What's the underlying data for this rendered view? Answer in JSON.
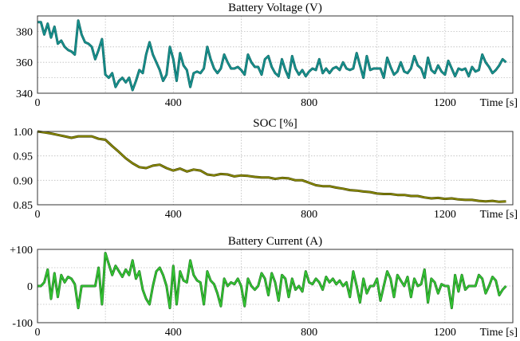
{
  "chart_data": [
    {
      "type": "line",
      "title": "Battery Voltage (V)",
      "xlabel": "Time [s]",
      "xlim": [
        0,
        1400
      ],
      "xticks": [
        0,
        400,
        800,
        1200
      ],
      "ylim": [
        340,
        390
      ],
      "yticks": [
        340,
        360,
        380
      ],
      "ygrid": [
        350,
        360,
        370,
        380
      ],
      "grid": true,
      "color": "#17918e",
      "t_start": 0,
      "t_step": 10,
      "values": [
        386,
        386,
        378,
        385,
        376,
        383,
        372,
        374,
        370,
        368,
        367,
        365,
        387,
        378,
        373,
        372,
        370,
        362,
        368,
        375,
        352,
        350,
        353,
        344,
        348,
        350,
        347,
        350,
        342,
        348,
        355,
        353,
        365,
        373,
        365,
        360,
        355,
        348,
        352,
        370,
        362,
        348,
        366,
        358,
        355,
        344,
        353,
        354,
        353,
        356,
        370,
        362,
        356,
        353,
        356,
        365,
        360,
        356,
        356,
        357,
        355,
        352,
        365,
        360,
        357,
        357,
        352,
        362,
        364,
        357,
        353,
        351,
        362,
        355,
        350,
        364,
        356,
        352,
        355,
        351,
        354,
        356,
        355,
        362,
        353,
        356,
        353,
        356,
        357,
        355,
        360,
        356,
        355,
        356,
        366,
        358,
        350,
        364,
        355,
        356,
        356,
        356,
        350,
        363,
        357,
        352,
        354,
        360,
        354,
        353,
        356,
        364,
        358,
        356,
        350,
        363,
        355,
        353,
        358,
        354,
        352,
        361,
        356,
        351,
        356,
        355,
        356,
        351,
        357,
        354,
        355,
        365,
        360,
        357,
        353,
        355,
        358,
        362,
        360
      ]
    },
    {
      "type": "line",
      "title": "SOC [%]",
      "xlabel": "Time [s]",
      "xlim": [
        0,
        1400
      ],
      "xticks": [
        0,
        400,
        800,
        1200
      ],
      "ylim": [
        0.85,
        1.0
      ],
      "yticks": [
        "0.85",
        "0.90",
        "0.95",
        "1.00"
      ],
      "ygrid": [
        0.9,
        0.95
      ],
      "grid": true,
      "color": "#8a8a00",
      "t_start": 0,
      "t_step": 20,
      "values": [
        1.0,
        0.998,
        0.996,
        0.993,
        0.99,
        0.987,
        0.99,
        0.99,
        0.99,
        0.985,
        0.983,
        0.97,
        0.958,
        0.945,
        0.935,
        0.927,
        0.925,
        0.93,
        0.932,
        0.925,
        0.92,
        0.924,
        0.918,
        0.922,
        0.92,
        0.912,
        0.91,
        0.913,
        0.912,
        0.908,
        0.91,
        0.909,
        0.907,
        0.906,
        0.906,
        0.903,
        0.905,
        0.904,
        0.9,
        0.9,
        0.895,
        0.89,
        0.888,
        0.888,
        0.885,
        0.883,
        0.88,
        0.879,
        0.877,
        0.876,
        0.873,
        0.872,
        0.872,
        0.87,
        0.87,
        0.868,
        0.868,
        0.865,
        0.863,
        0.864,
        0.862,
        0.863,
        0.861,
        0.86,
        0.86,
        0.858,
        0.857,
        0.858,
        0.856,
        0.857
      ]
    },
    {
      "type": "line",
      "title": "Battery Current (A)",
      "xlabel": "Time [s]",
      "xlim": [
        0,
        1400
      ],
      "xticks": [
        0,
        400,
        800,
        1200
      ],
      "ylim": [
        -100,
        100
      ],
      "yticks": [
        "-100",
        "0",
        "+100"
      ],
      "ygrid": [
        -50,
        0,
        50
      ],
      "grid": true,
      "color": "#33c433",
      "t_start": 0,
      "t_step": 10,
      "values": [
        0,
        0,
        10,
        45,
        -35,
        35,
        -30,
        30,
        10,
        25,
        20,
        5,
        -60,
        0,
        0,
        0,
        0,
        0,
        50,
        -50,
        90,
        60,
        30,
        55,
        40,
        25,
        45,
        30,
        70,
        20,
        40,
        -10,
        -35,
        -50,
        0,
        40,
        50,
        30,
        0,
        -60,
        55,
        -50,
        40,
        15,
        10,
        70,
        30,
        15,
        10,
        -50,
        40,
        15,
        5,
        -20,
        -55,
        20,
        0,
        10,
        5,
        20,
        0,
        -55,
        20,
        0,
        -10,
        0,
        35,
        20,
        -25,
        35,
        10,
        -40,
        30,
        20,
        -30,
        20,
        -10,
        0,
        -15,
        40,
        10,
        5,
        20,
        10,
        -10,
        25,
        10,
        20,
        5,
        15,
        0,
        10,
        -30,
        40,
        0,
        -45,
        20,
        -20,
        0,
        0,
        20,
        -40,
        0,
        40,
        20,
        -30,
        30,
        15,
        0,
        25,
        -30,
        20,
        0,
        5,
        45,
        -45,
        20,
        10,
        -20,
        5,
        0,
        0,
        -60,
        30,
        -15,
        30,
        -10,
        0,
        0,
        0,
        30,
        20,
        -20,
        0,
        25,
        15,
        -25,
        -10,
        0
      ]
    }
  ]
}
